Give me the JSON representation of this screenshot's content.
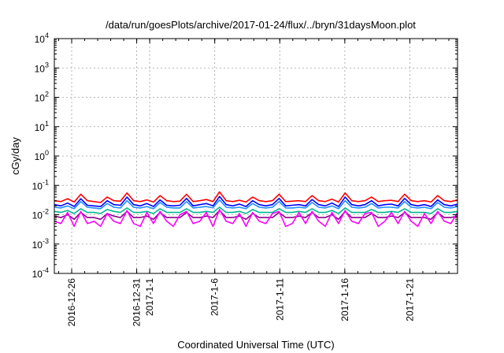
{
  "chart_data": {
    "type": "line",
    "title": "/data/run/goesPlots/archive/2017-01-24/flux/../bryn/31daysMoon.plot",
    "xlabel": "Coordinated Universal Time (UTC)",
    "ylabel": "cGy/day",
    "yscale": "log",
    "ylim": [
      0.0001,
      10000
    ],
    "y_ticks": [
      {
        "value": 0.0001,
        "base": "10",
        "exp": "-4"
      },
      {
        "value": 0.001,
        "base": "10",
        "exp": "-3"
      },
      {
        "value": 0.01,
        "base": "10",
        "exp": "-2"
      },
      {
        "value": 0.1,
        "base": "10",
        "exp": "-1"
      },
      {
        "value": 1,
        "base": "10",
        "exp": "0"
      },
      {
        "value": 10,
        "base": "10",
        "exp": "1"
      },
      {
        "value": 100,
        "base": "10",
        "exp": "2"
      },
      {
        "value": 1000,
        "base": "10",
        "exp": "3"
      },
      {
        "value": 10000,
        "base": "10",
        "exp": "4"
      }
    ],
    "xlim": [
      "2016-12-24T16:00",
      "2017-01-24T16:00"
    ],
    "x_ticks": [
      {
        "date": "2016-12-26",
        "label": "2016-12-26"
      },
      {
        "date": "2016-12-31",
        "label": "2016-12-31"
      },
      {
        "date": "2017-01-01",
        "label": "2017-1-1"
      },
      {
        "date": "2017-01-06",
        "label": "2017-1-6"
      },
      {
        "date": "2017-01-11",
        "label": "2017-1-11"
      },
      {
        "date": "2017-01-16",
        "label": "2017-1-16"
      },
      {
        "date": "2017-01-21",
        "label": "2017-1-21"
      }
    ],
    "grid": true,
    "series": [
      {
        "color": "#ff0000",
        "values": [
          0.03,
          0.028,
          0.035,
          0.027,
          0.05,
          0.03,
          0.028,
          0.026,
          0.04,
          0.03,
          0.029,
          0.055,
          0.03,
          0.028,
          0.032,
          0.027,
          0.045,
          0.03,
          0.028,
          0.029,
          0.05,
          0.028,
          0.03,
          0.033,
          0.028,
          0.06,
          0.03,
          0.028,
          0.031,
          0.027,
          0.04,
          0.03,
          0.028,
          0.03,
          0.05,
          0.028,
          0.029,
          0.03,
          0.028,
          0.045,
          0.03,
          0.028,
          0.034,
          0.027,
          0.055,
          0.03,
          0.028,
          0.03,
          0.04,
          0.028,
          0.03,
          0.031,
          0.028,
          0.05,
          0.03,
          0.028,
          0.03,
          0.027,
          0.045,
          0.03,
          0.028,
          0.032
        ]
      },
      {
        "color": "#0000ff",
        "values": [
          0.022,
          0.02,
          0.025,
          0.019,
          0.035,
          0.021,
          0.02,
          0.019,
          0.03,
          0.022,
          0.021,
          0.04,
          0.022,
          0.02,
          0.024,
          0.019,
          0.032,
          0.021,
          0.02,
          0.021,
          0.036,
          0.02,
          0.022,
          0.024,
          0.02,
          0.042,
          0.022,
          0.02,
          0.023,
          0.019,
          0.03,
          0.022,
          0.02,
          0.022,
          0.036,
          0.02,
          0.021,
          0.022,
          0.02,
          0.033,
          0.022,
          0.02,
          0.025,
          0.019,
          0.04,
          0.022,
          0.02,
          0.022,
          0.03,
          0.02,
          0.022,
          0.023,
          0.02,
          0.036,
          0.022,
          0.02,
          0.022,
          0.019,
          0.032,
          0.022,
          0.02,
          0.023
        ]
      },
      {
        "color": "#1e90ff",
        "values": [
          0.018,
          0.017,
          0.02,
          0.016,
          0.028,
          0.018,
          0.017,
          0.016,
          0.024,
          0.018,
          0.017,
          0.03,
          0.018,
          0.017,
          0.019,
          0.016,
          0.026,
          0.018,
          0.017,
          0.017,
          0.028,
          0.017,
          0.018,
          0.019,
          0.017,
          0.032,
          0.018,
          0.017,
          0.018,
          0.016,
          0.024,
          0.018,
          0.017,
          0.018,
          0.028,
          0.017,
          0.017,
          0.018,
          0.017,
          0.026,
          0.018,
          0.017,
          0.02,
          0.016,
          0.03,
          0.018,
          0.017,
          0.018,
          0.024,
          0.017,
          0.018,
          0.018,
          0.017,
          0.028,
          0.018,
          0.017,
          0.018,
          0.016,
          0.026,
          0.018,
          0.017,
          0.019
        ]
      },
      {
        "color": "#00b890",
        "values": [
          0.013,
          0.012,
          0.014,
          0.011,
          0.016,
          0.012,
          0.012,
          0.011,
          0.015,
          0.013,
          0.012,
          0.017,
          0.012,
          0.012,
          0.013,
          0.011,
          0.016,
          0.012,
          0.012,
          0.012,
          0.016,
          0.012,
          0.012,
          0.013,
          0.012,
          0.018,
          0.012,
          0.012,
          0.013,
          0.011,
          0.015,
          0.012,
          0.012,
          0.012,
          0.016,
          0.012,
          0.012,
          0.013,
          0.012,
          0.016,
          0.012,
          0.012,
          0.014,
          0.011,
          0.017,
          0.012,
          0.012,
          0.012,
          0.015,
          0.012,
          0.012,
          0.013,
          0.012,
          0.016,
          0.012,
          0.012,
          0.012,
          0.011,
          0.016,
          0.012,
          0.012,
          0.013
        ]
      },
      {
        "color": "#8b008b",
        "values": [
          0.009,
          0.008,
          0.01,
          0.007,
          0.012,
          0.008,
          0.008,
          0.007,
          0.011,
          0.009,
          0.008,
          0.013,
          0.008,
          0.008,
          0.009,
          0.007,
          0.012,
          0.008,
          0.008,
          0.008,
          0.012,
          0.008,
          0.008,
          0.009,
          0.008,
          0.014,
          0.008,
          0.008,
          0.009,
          0.007,
          0.011,
          0.008,
          0.008,
          0.008,
          0.012,
          0.008,
          0.008,
          0.009,
          0.008,
          0.012,
          0.008,
          0.008,
          0.01,
          0.007,
          0.013,
          0.008,
          0.008,
          0.008,
          0.011,
          0.008,
          0.008,
          0.009,
          0.008,
          0.012,
          0.008,
          0.008,
          0.008,
          0.007,
          0.012,
          0.008,
          0.008,
          0.009
        ]
      },
      {
        "color": "#ff00ff",
        "values": [
          0.006,
          0.005,
          0.012,
          0.004,
          0.013,
          0.005,
          0.006,
          0.004,
          0.011,
          0.006,
          0.005,
          0.014,
          0.005,
          0.004,
          0.012,
          0.005,
          0.013,
          0.006,
          0.004,
          0.01,
          0.013,
          0.005,
          0.006,
          0.012,
          0.004,
          0.015,
          0.006,
          0.005,
          0.011,
          0.004,
          0.012,
          0.006,
          0.005,
          0.011,
          0.013,
          0.004,
          0.005,
          0.012,
          0.005,
          0.013,
          0.006,
          0.004,
          0.012,
          0.005,
          0.014,
          0.006,
          0.005,
          0.011,
          0.012,
          0.004,
          0.006,
          0.012,
          0.005,
          0.013,
          0.006,
          0.004,
          0.011,
          0.005,
          0.013,
          0.006,
          0.005,
          0.012
        ]
      }
    ]
  }
}
